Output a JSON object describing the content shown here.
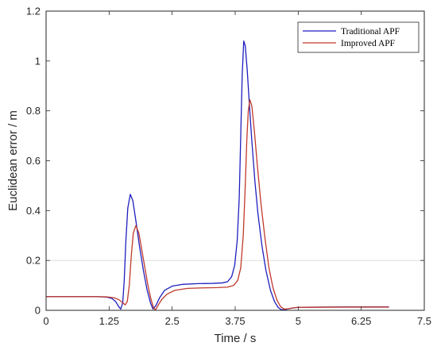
{
  "chart_data": {
    "type": "line",
    "xlabel": "Time / s",
    "ylabel": "Euclidean error / m",
    "xlim": [
      0,
      7.5
    ],
    "ylim": [
      0,
      1.2
    ],
    "x_ticks": [
      "0",
      "1.25",
      "2.5",
      "3.75",
      "5",
      "6.25",
      "7.5"
    ],
    "x_tick_values": [
      0,
      1.25,
      2.5,
      3.75,
      5,
      6.25,
      7.5
    ],
    "y_ticks": [
      "0",
      "0.2",
      "0.4",
      "0.6",
      "0.8",
      "1",
      "1.2"
    ],
    "y_tick_values": [
      0,
      0.2,
      0.4,
      0.6,
      0.8,
      1.0,
      1.2
    ],
    "legend_position": "top-right",
    "series": [
      {
        "name": "Traditional APF",
        "color": "#1f1fbf",
        "points": [
          [
            0,
            0.055
          ],
          [
            0.5,
            0.055
          ],
          [
            1.0,
            0.055
          ],
          [
            1.2,
            0.053
          ],
          [
            1.3,
            0.048
          ],
          [
            1.38,
            0.035
          ],
          [
            1.44,
            0.015
          ],
          [
            1.48,
            0.005
          ],
          [
            1.52,
            0.03
          ],
          [
            1.55,
            0.12
          ],
          [
            1.58,
            0.27
          ],
          [
            1.62,
            0.41
          ],
          [
            1.67,
            0.465
          ],
          [
            1.72,
            0.44
          ],
          [
            1.78,
            0.36
          ],
          [
            1.85,
            0.26
          ],
          [
            1.93,
            0.16
          ],
          [
            2.0,
            0.085
          ],
          [
            2.07,
            0.03
          ],
          [
            2.12,
            0.005
          ],
          [
            2.18,
            0.02
          ],
          [
            2.25,
            0.05
          ],
          [
            2.35,
            0.08
          ],
          [
            2.5,
            0.097
          ],
          [
            2.7,
            0.104
          ],
          [
            3.0,
            0.107
          ],
          [
            3.3,
            0.108
          ],
          [
            3.5,
            0.11
          ],
          [
            3.6,
            0.115
          ],
          [
            3.68,
            0.135
          ],
          [
            3.74,
            0.18
          ],
          [
            3.79,
            0.28
          ],
          [
            3.83,
            0.45
          ],
          [
            3.86,
            0.7
          ],
          [
            3.89,
            0.95
          ],
          [
            3.92,
            1.08
          ],
          [
            3.95,
            1.06
          ],
          [
            3.99,
            0.96
          ],
          [
            4.03,
            0.83
          ],
          [
            4.08,
            0.68
          ],
          [
            4.14,
            0.52
          ],
          [
            4.2,
            0.39
          ],
          [
            4.28,
            0.26
          ],
          [
            4.36,
            0.16
          ],
          [
            4.45,
            0.08
          ],
          [
            4.53,
            0.035
          ],
          [
            4.6,
            0.012
          ],
          [
            4.66,
            0.003
          ],
          [
            4.72,
            0.002
          ],
          [
            4.85,
            0.008
          ],
          [
            5.0,
            0.012
          ],
          [
            6.0,
            0.014
          ],
          [
            6.8,
            0.014
          ]
        ]
      },
      {
        "name": "Improved APF",
        "color": "#c0392b",
        "points": [
          [
            0,
            0.055
          ],
          [
            0.5,
            0.055
          ],
          [
            1.0,
            0.055
          ],
          [
            1.2,
            0.054
          ],
          [
            1.35,
            0.05
          ],
          [
            1.45,
            0.042
          ],
          [
            1.52,
            0.03
          ],
          [
            1.57,
            0.022
          ],
          [
            1.61,
            0.035
          ],
          [
            1.65,
            0.1
          ],
          [
            1.69,
            0.22
          ],
          [
            1.73,
            0.31
          ],
          [
            1.78,
            0.34
          ],
          [
            1.84,
            0.31
          ],
          [
            1.9,
            0.24
          ],
          [
            1.96,
            0.17
          ],
          [
            2.02,
            0.1
          ],
          [
            2.08,
            0.045
          ],
          [
            2.13,
            0.01
          ],
          [
            2.17,
            0.002
          ],
          [
            2.22,
            0.02
          ],
          [
            2.3,
            0.045
          ],
          [
            2.4,
            0.065
          ],
          [
            2.55,
            0.08
          ],
          [
            2.8,
            0.088
          ],
          [
            3.1,
            0.09
          ],
          [
            3.4,
            0.091
          ],
          [
            3.6,
            0.093
          ],
          [
            3.72,
            0.1
          ],
          [
            3.8,
            0.12
          ],
          [
            3.86,
            0.17
          ],
          [
            3.91,
            0.3
          ],
          [
            3.95,
            0.5
          ],
          [
            3.98,
            0.68
          ],
          [
            4.01,
            0.8
          ],
          [
            4.04,
            0.845
          ],
          [
            4.08,
            0.82
          ],
          [
            4.13,
            0.72
          ],
          [
            4.19,
            0.58
          ],
          [
            4.26,
            0.43
          ],
          [
            4.34,
            0.29
          ],
          [
            4.42,
            0.17
          ],
          [
            4.5,
            0.09
          ],
          [
            4.58,
            0.04
          ],
          [
            4.65,
            0.015
          ],
          [
            4.72,
            0.005
          ],
          [
            4.8,
            0.006
          ],
          [
            4.9,
            0.01
          ],
          [
            5.0,
            0.012
          ],
          [
            6.0,
            0.013
          ],
          [
            6.8,
            0.013
          ]
        ]
      }
    ]
  }
}
